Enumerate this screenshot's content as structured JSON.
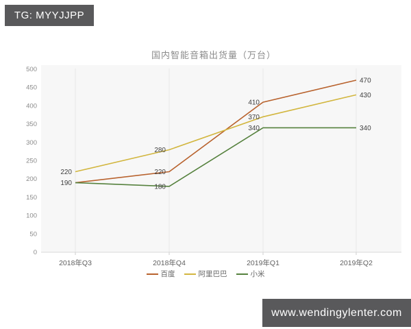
{
  "header": {
    "badge_text": "TG: MYYJJPP"
  },
  "footer": {
    "badge_text": "www.wendingylenter.com"
  },
  "colors": {
    "badge_bg": "#59595b",
    "plot_bg": "#f7f7f7",
    "gridline": "#e7e7e7",
    "axis_line": "#d9d9d9",
    "tick": "#cccccc",
    "value_label": "#404040",
    "y_axis_label": "#8a8a8a",
    "x_axis_label": "#5f5f5f",
    "title": "#8c8c8c"
  },
  "chart_data": {
    "type": "line",
    "title": "国内智能音箱出货量（万台）",
    "categories": [
      "2018年Q3",
      "2018年Q4",
      "2019年Q1",
      "2019年Q2"
    ],
    "series": [
      {
        "name": "百度",
        "color": "#b8622d",
        "values": [
          190,
          220,
          410,
          470
        ],
        "labels": [
          "190",
          "220",
          "410",
          "470"
        ]
      },
      {
        "name": "阿里巴巴",
        "color": "#d2b63e",
        "values": [
          220,
          280,
          370,
          430
        ],
        "labels": [
          "220",
          "280",
          "370",
          "430"
        ]
      },
      {
        "name": "小米",
        "color": "#55813d",
        "values": [
          190,
          180,
          340,
          340
        ],
        "labels": [
          "",
          "180",
          "340",
          "340"
        ]
      }
    ],
    "xlabel": "",
    "ylabel": "",
    "ylim": [
      0,
      500
    ],
    "ytick_step": 50,
    "grid": "vertical-only",
    "legend_position": "bottom",
    "legend_entries": [
      "百度",
      "阿里巴巴",
      "小米"
    ]
  }
}
